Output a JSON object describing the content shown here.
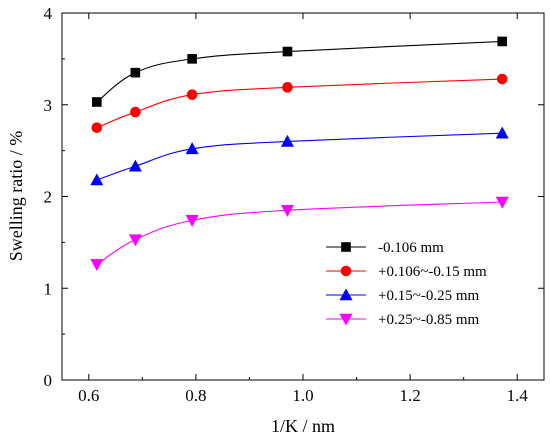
{
  "chart_data": {
    "type": "line",
    "xlabel": "1/K / nm",
    "ylabel": "Swelling ratio / %",
    "xlim": [
      0.55,
      1.45
    ],
    "ylim": [
      0,
      4
    ],
    "xticks": [
      0.6,
      0.8,
      1.0,
      1.2,
      1.4
    ],
    "xtick_labels": [
      "0.6",
      "0.8",
      "1.0",
      "1.2",
      "1.4"
    ],
    "yticks": [
      0,
      1,
      2,
      3,
      4
    ],
    "ytick_labels": [
      "0",
      "1",
      "2",
      "3",
      "4"
    ],
    "grid": false,
    "legend_position": "lower-right",
    "x": [
      0.615,
      0.687,
      0.793,
      0.971,
      1.372
    ],
    "series": [
      {
        "name": "-0.106 mm",
        "color": "#000000",
        "marker": "square",
        "values": [
          3.03,
          3.35,
          3.5,
          3.58,
          3.69
        ]
      },
      {
        "name": "+0.106~-0.15 mm",
        "color": "#ff0000",
        "marker": "circle",
        "values": [
          2.75,
          2.92,
          3.11,
          3.19,
          3.28
        ]
      },
      {
        "name": "+0.15~-0.25 mm",
        "color": "#0000ff",
        "marker": "triangle-up",
        "values": [
          2.18,
          2.33,
          2.52,
          2.6,
          2.69
        ]
      },
      {
        "name": "+0.25~-0.85 mm",
        "color": "#ff00ff",
        "marker": "triangle-down",
        "values": [
          1.26,
          1.53,
          1.74,
          1.85,
          1.94
        ]
      }
    ]
  }
}
